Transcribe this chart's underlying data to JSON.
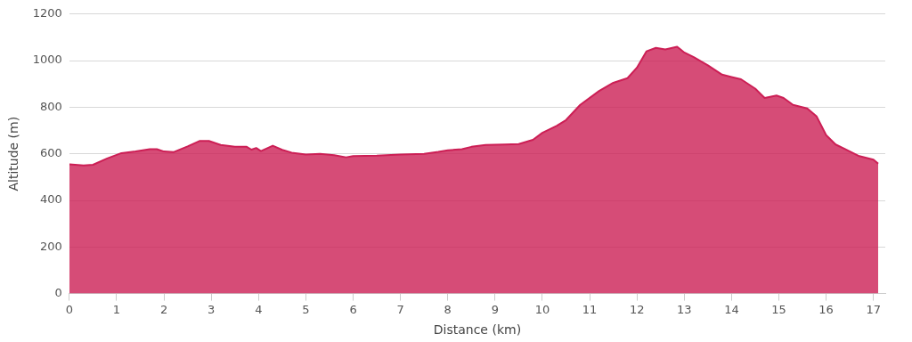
{
  "chart_data": {
    "type": "area",
    "xlabel": "Distance (km)",
    "ylabel": "Altitude (m)",
    "x": [
      0,
      0.3,
      0.5,
      0.8,
      1.1,
      1.4,
      1.7,
      1.85,
      2.0,
      2.2,
      2.5,
      2.75,
      2.95,
      3.2,
      3.5,
      3.75,
      3.85,
      3.95,
      4.05,
      4.3,
      4.5,
      4.7,
      5.0,
      5.3,
      5.6,
      5.85,
      6.0,
      6.5,
      7.0,
      7.5,
      7.8,
      8.0,
      8.3,
      8.5,
      8.8,
      9.2,
      9.5,
      9.8,
      10.0,
      10.3,
      10.5,
      10.8,
      11.2,
      11.5,
      11.8,
      12.0,
      12.2,
      12.4,
      12.6,
      12.85,
      13.0,
      13.2,
      13.5,
      13.8,
      14.0,
      14.2,
      14.5,
      14.7,
      14.95,
      15.1,
      15.3,
      15.6,
      15.8,
      16.0,
      16.2,
      16.4,
      16.7,
      17.0,
      17.1
    ],
    "series": [
      {
        "color": "#cc1f55",
        "values": [
          555,
          550,
          553,
          580,
          603,
          610,
          620,
          620,
          610,
          607,
          632,
          655,
          655,
          638,
          630,
          630,
          618,
          625,
          612,
          635,
          617,
          605,
          597,
          600,
          594,
          585,
          590,
          592,
          597,
          600,
          608,
          615,
          620,
          630,
          638,
          640,
          642,
          660,
          690,
          720,
          745,
          810,
          870,
          905,
          925,
          970,
          1040,
          1055,
          1048,
          1060,
          1035,
          1015,
          980,
          940,
          930,
          920,
          880,
          840,
          850,
          840,
          810,
          795,
          760,
          680,
          640,
          620,
          590,
          575,
          558
        ]
      }
    ],
    "xlim": [
      0,
      17.25
    ],
    "xticks": [
      0,
      1,
      2,
      3,
      4,
      5,
      6,
      7,
      8,
      9,
      10,
      11,
      12,
      13,
      14,
      15,
      16,
      17
    ],
    "ylim": [
      0,
      1200
    ],
    "yticks": [
      0,
      200,
      400,
      600,
      800,
      1000,
      1200
    ],
    "grid": "y",
    "legend": false,
    "marker": "none",
    "line_style": "solid"
  }
}
